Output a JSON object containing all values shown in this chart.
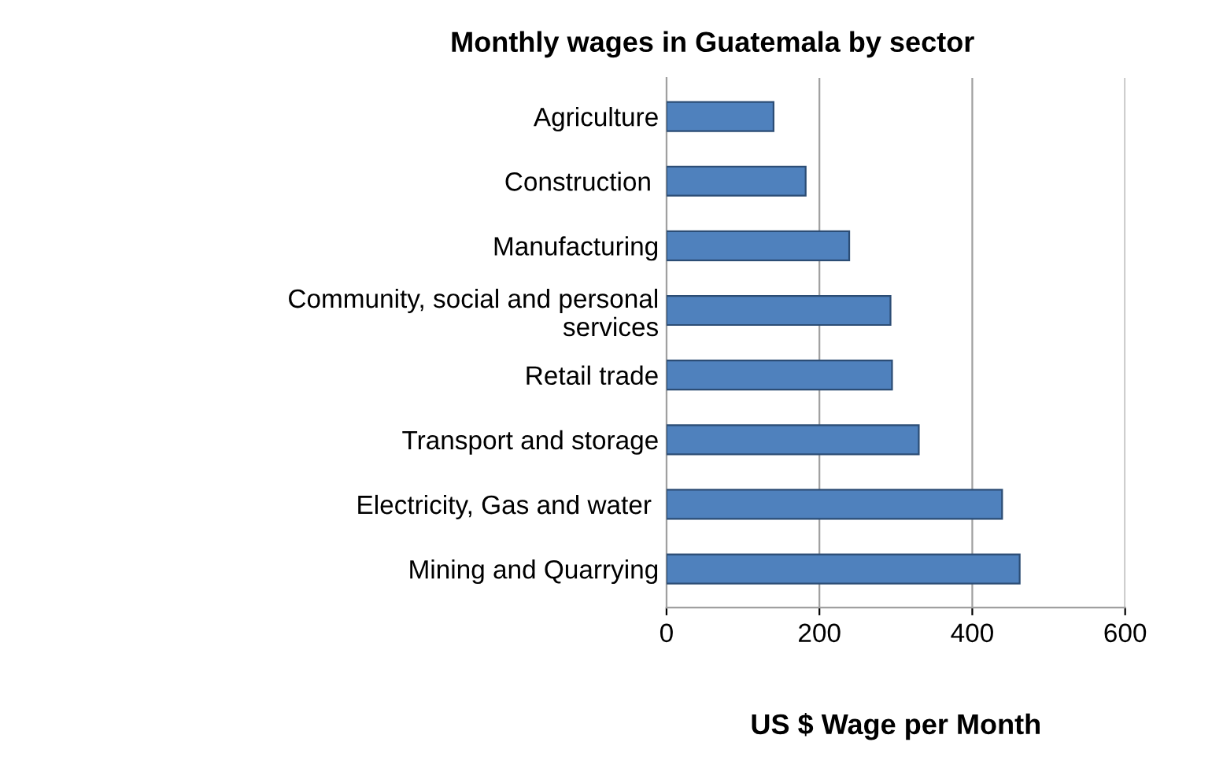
{
  "chart_data": {
    "type": "bar",
    "orientation": "horizontal",
    "title": "Monthly wages in Guatemala by sector",
    "xlabel": "US $ Wage per Month",
    "categories": [
      "Agriculture",
      "Construction ",
      "Manufacturing",
      "Community, social and personal\nservices",
      "Retail trade",
      "Transport and storage",
      "Electricity, Gas and water ",
      "Mining and Quarrying"
    ],
    "values": [
      140,
      182,
      239,
      293,
      295,
      330,
      439,
      462
    ],
    "color": "#4f81bd",
    "xlim": [
      0,
      600
    ],
    "xticks": [
      0,
      200,
      400,
      600
    ],
    "grid": "x",
    "legend": false
  }
}
